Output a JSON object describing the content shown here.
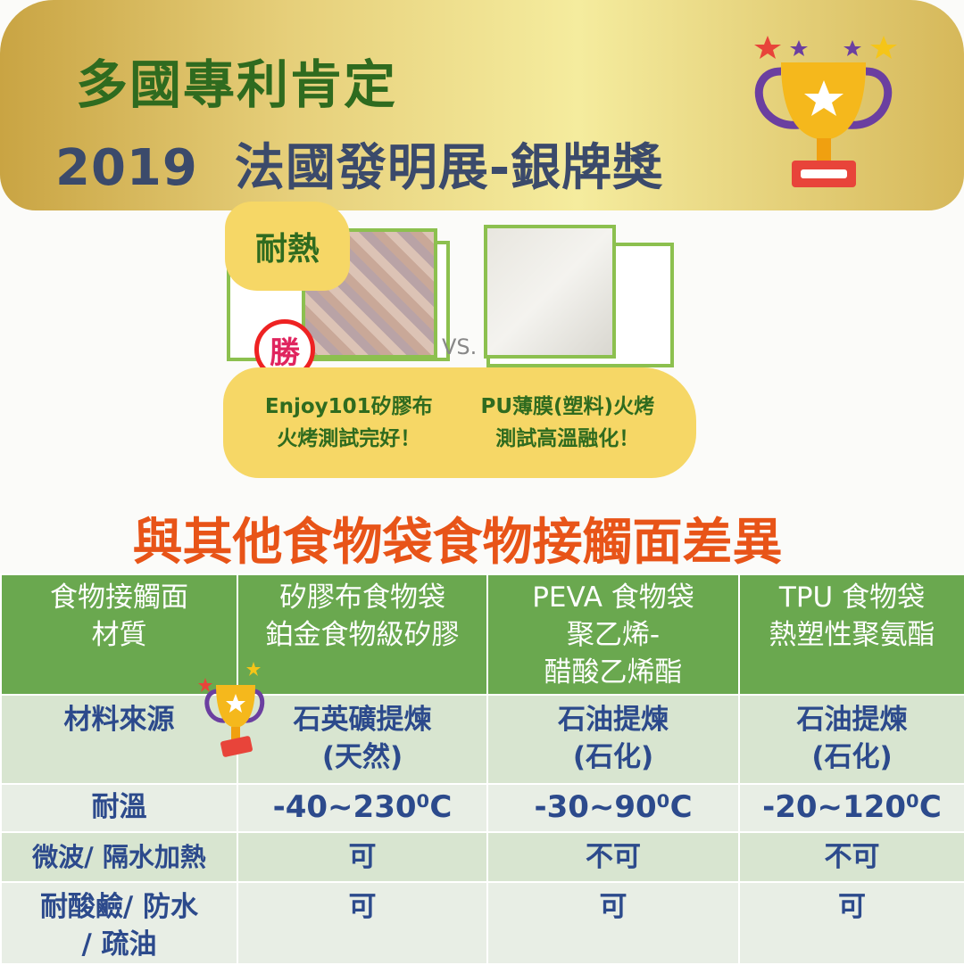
{
  "banner": {
    "line1": "多國專利肯定",
    "line2": "2019  法國發明展-銀牌獎"
  },
  "heat_test": {
    "tag": "耐熱",
    "winner_badge": "勝",
    "vs": "VS.",
    "left_caption": [
      "Enjoy101矽膠布",
      "火烤測試完好！"
    ],
    "right_caption": [
      "PU薄膜(塑料)火烤",
      "測試高溫融化！"
    ]
  },
  "section_title": "與其他食物袋食物接觸面差異",
  "table": {
    "headers": [
      [
        "食物接觸面",
        "材質"
      ],
      [
        "矽膠布食物袋",
        "鉑金食物級矽膠"
      ],
      [
        "PEVA 食物袋",
        "聚乙烯-",
        "醋酸乙烯酯"
      ],
      [
        "TPU 食物袋",
        "熱塑性聚氨酯"
      ]
    ],
    "rows": [
      {
        "label": [
          "材料來源"
        ],
        "cells": [
          [
            "石英礦提煉",
            "(天然)"
          ],
          [
            "石油提煉",
            "(石化)"
          ],
          [
            "石油提煉",
            "(石化)"
          ]
        ]
      },
      {
        "label": [
          "耐溫"
        ],
        "cells": [
          [
            "-40~230⁰C"
          ],
          [
            "-30~90⁰C"
          ],
          [
            "-20~120⁰C"
          ]
        ]
      },
      {
        "label": [
          "微波/ 隔水加熱"
        ],
        "cells": [
          [
            "可"
          ],
          [
            "不可"
          ],
          [
            "不可"
          ]
        ]
      },
      {
        "label": [
          "耐酸鹼/ 防水",
          "/ 疏油"
        ],
        "cells": [
          [
            "可"
          ],
          [
            "可"
          ],
          [
            "可"
          ]
        ]
      }
    ]
  },
  "colors": {
    "title_green": "#2f6b1f",
    "title_navy": "#3b4a6b",
    "heading_orange": "#e85418",
    "table_header": "#6aa84f",
    "table_text": "#2c4a8c"
  }
}
